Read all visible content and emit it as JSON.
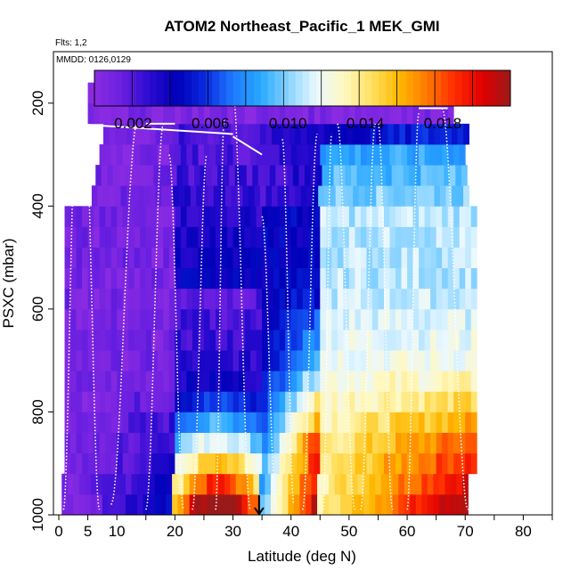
{
  "chart_data": {
    "type": "heatmap",
    "title": "ATOM2 Northeast_Pacific_1 MEK_GMI",
    "flights_label": "Flts: 1,2",
    "dates_label": "MMDD: 0126,0129",
    "xlabel": "Latitude (deg N)",
    "ylabel": "PSXC (mbar)",
    "xlim": [
      0,
      85
    ],
    "ylim": [
      1000,
      100
    ],
    "x_ticks": [
      0,
      5,
      10,
      20,
      30,
      40,
      50,
      60,
      70,
      80
    ],
    "y_ticks": [
      200,
      400,
      600,
      800,
      1000
    ],
    "colorbar": {
      "range": [
        0,
        0.0215
      ],
      "ticks": [
        0.002,
        0.006,
        0.01,
        0.014,
        0.018
      ],
      "tick_labels": [
        "0.002",
        "0.006",
        "0.010",
        "0.014",
        "0.018"
      ],
      "stops": [
        "#8a2be2",
        "#6a1fe0",
        "#2a0ad0",
        "#0000b8",
        "#0a2ae0",
        "#1e7aff",
        "#28a8ff",
        "#8ad4ff",
        "#eaf8ff",
        "#fff8c0",
        "#ffe060",
        "#ffb800",
        "#ff7800",
        "#ff2a00",
        "#e00000",
        "#9a1a1a"
      ]
    },
    "pressure_levels": [
      980,
      940,
      900,
      860,
      820,
      780,
      740,
      700,
      660,
      620,
      580,
      540,
      500,
      460,
      420,
      380,
      340,
      300,
      260,
      220,
      180
    ],
    "latitude_extent": {
      "bottom": [
        0.5,
        70.5
      ],
      "middle": [
        1,
        72
      ],
      "top": [
        5,
        68
      ]
    },
    "marker": {
      "latitude": 34.5,
      "pressure": 1000
    },
    "colors": {
      "frame": "#000000",
      "profile": "#ffffff"
    }
  }
}
